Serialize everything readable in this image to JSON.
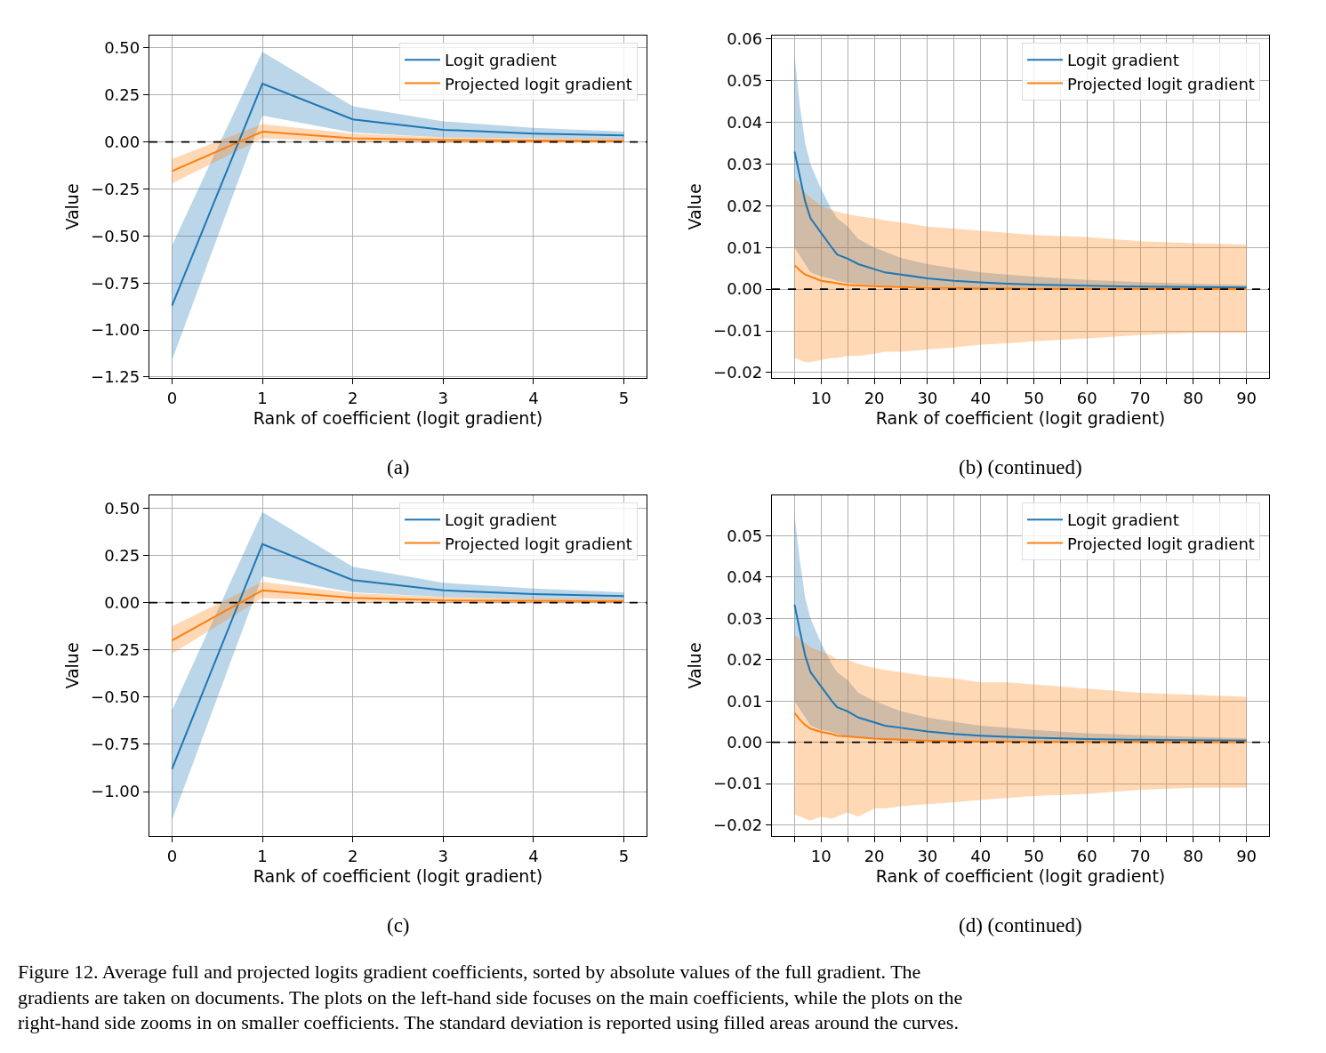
{
  "chart_data": [
    {
      "type": "line",
      "xlabel": "Rank of coefficient (logit gradient)",
      "ylabel": "Value",
      "annotations": [
        "(a)"
      ],
      "x": [
        0,
        1,
        2,
        3,
        4,
        5
      ],
      "series": [
        {
          "name": "Logit gradient",
          "color": "#1f77b4",
          "values": [
            -0.87,
            0.31,
            0.12,
            0.065,
            0.045,
            0.035
          ],
          "lower": [
            -1.16,
            0.14,
            0.05,
            0.025,
            0.02,
            0.015
          ],
          "upper": [
            -0.55,
            0.48,
            0.19,
            0.11,
            0.075,
            0.055
          ]
        },
        {
          "name": "Projected logit gradient",
          "color": "#ff7f0e",
          "values": [
            -0.155,
            0.055,
            0.02,
            0.01,
            0.008,
            0.005
          ],
          "lower": [
            -0.22,
            0.02,
            0.0,
            -0.005,
            -0.005,
            -0.005
          ],
          "upper": [
            -0.09,
            0.095,
            0.045,
            0.025,
            0.02,
            0.018
          ]
        }
      ],
      "xlim": [
        -0.25,
        5.25
      ],
      "ylim": [
        -1.255,
        0.566
      ],
      "xticks": [
        0,
        1,
        2,
        3,
        4,
        5
      ],
      "yticks": [
        {
          "value": -1.25,
          "label": "−1.25"
        },
        {
          "value": -1.0,
          "label": "−1.00"
        },
        {
          "value": -0.75,
          "label": "−0.75"
        },
        {
          "value": -0.5,
          "label": "−0.50"
        },
        {
          "value": -0.25,
          "label": "−0.25"
        },
        {
          "value": 0,
          "label": "0.00"
        },
        {
          "value": 0.25,
          "label": "0.25"
        },
        {
          "value": 0.5,
          "label": "0.50"
        }
      ],
      "ref_lines": [
        {
          "axis": "y",
          "value": 0,
          "color": "#000000",
          "line_style": "dashed"
        }
      ],
      "grid": true,
      "legend": "top right",
      "marker": "none",
      "line_style": "solid"
    },
    {
      "type": "line",
      "xlabel": "Rank of coefficient (logit gradient)",
      "ylabel": "Value",
      "annotations": [
        "(b) (continued)"
      ],
      "x": [
        5,
        6,
        7,
        8,
        10,
        12,
        13,
        15,
        17,
        20,
        22,
        25,
        30,
        35,
        40,
        45,
        50,
        60,
        70,
        80,
        90
      ],
      "series": [
        {
          "name": "Logit gradient",
          "color": "#1f77b4",
          "values": [
            0.033,
            0.027,
            0.021,
            0.017,
            0.0135,
            0.01,
            0.0083,
            0.0073,
            0.006,
            0.0048,
            0.004,
            0.0035,
            0.0026,
            0.002,
            0.0016,
            0.0013,
            0.0011,
            0.0008,
            0.0006,
            0.0005,
            0.0004
          ],
          "lower": [
            0.01,
            0.008,
            0.006,
            0.004,
            0.003,
            0.0025,
            0.002,
            0.0015,
            0.0012,
            0.001,
            0.0009,
            0.0007,
            0.0006,
            0.0005,
            0.0004,
            0.0003,
            0.0003,
            0.0002,
            0.0002,
            0.0001,
            0.0001
          ],
          "upper": [
            0.056,
            0.044,
            0.035,
            0.03,
            0.024,
            0.019,
            0.017,
            0.015,
            0.012,
            0.01,
            0.009,
            0.0075,
            0.006,
            0.005,
            0.004,
            0.0035,
            0.003,
            0.0022,
            0.0017,
            0.0013,
            0.001
          ]
        },
        {
          "name": "Projected logit gradient",
          "color": "#ff7f0e",
          "values": [
            0.0057,
            0.0045,
            0.0035,
            0.003,
            0.002,
            0.0016,
            0.0014,
            0.001,
            0.0009,
            0.0007,
            0.0006,
            0.0005,
            0.0003,
            0.0003,
            0.0002,
            0.0002,
            0.0001,
            0.0001,
            0.0001,
            0,
            0
          ],
          "lower": [
            -0.0165,
            -0.017,
            -0.0175,
            -0.0175,
            -0.017,
            -0.0165,
            -0.0165,
            -0.016,
            -0.016,
            -0.0155,
            -0.015,
            -0.015,
            -0.0145,
            -0.014,
            -0.0133,
            -0.013,
            -0.0125,
            -0.0118,
            -0.011,
            -0.0105,
            -0.0105
          ],
          "upper": [
            0.027,
            0.025,
            0.023,
            0.022,
            0.02,
            0.019,
            0.0185,
            0.018,
            0.0175,
            0.017,
            0.0165,
            0.016,
            0.015,
            0.0145,
            0.014,
            0.0135,
            0.013,
            0.0125,
            0.0115,
            0.011,
            0.0107
          ]
        }
      ],
      "xlim": [
        0.75,
        94.25
      ],
      "ylim": [
        -0.0213,
        0.0608
      ],
      "xticks": [
        {
          "value": 5,
          "label": null
        },
        10,
        {
          "value": 15,
          "label": null
        },
        20,
        {
          "value": 25,
          "label": null
        },
        30,
        {
          "value": 35,
          "label": null
        },
        40,
        {
          "value": 45,
          "label": null
        },
        50,
        {
          "value": 55,
          "label": null
        },
        60,
        {
          "value": 65,
          "label": null
        },
        70,
        {
          "value": 75,
          "label": null
        },
        80,
        {
          "value": 85,
          "label": null
        },
        90
      ],
      "yticks": [
        {
          "value": -0.02,
          "label": "−0.02"
        },
        {
          "value": -0.01,
          "label": "−0.01"
        },
        {
          "value": 0,
          "label": "0.00"
        },
        {
          "value": 0.01,
          "label": "0.01"
        },
        {
          "value": 0.02,
          "label": "0.02"
        },
        {
          "value": 0.03,
          "label": "0.03"
        },
        {
          "value": 0.04,
          "label": "0.04"
        },
        {
          "value": 0.05,
          "label": "0.05"
        },
        {
          "value": 0.06,
          "label": "0.06"
        }
      ],
      "ref_lines": [
        {
          "axis": "y",
          "value": 0,
          "color": "#000000",
          "line_style": "dashed"
        }
      ],
      "grid": true,
      "legend": "top right",
      "marker": "none",
      "line_style": "solid"
    },
    {
      "type": "line",
      "xlabel": "Rank of coefficient (logit gradient)",
      "ylabel": "Value",
      "annotations": [
        "(c)"
      ],
      "x": [
        0,
        1,
        2,
        3,
        4,
        5
      ],
      "series": [
        {
          "name": "Logit gradient",
          "color": "#1f77b4",
          "values": [
            -0.88,
            0.31,
            0.12,
            0.065,
            0.045,
            0.035
          ],
          "lower": [
            -1.15,
            0.14,
            0.055,
            0.03,
            0.02,
            0.015
          ],
          "upper": [
            -0.57,
            0.48,
            0.19,
            0.105,
            0.075,
            0.055
          ]
        },
        {
          "name": "Projected logit gradient",
          "color": "#ff7f0e",
          "values": [
            -0.2,
            0.065,
            0.025,
            0.012,
            0.01,
            0.008
          ],
          "lower": [
            -0.27,
            0.025,
            0.005,
            -0.003,
            -0.004,
            -0.004
          ],
          "upper": [
            -0.125,
            0.11,
            0.05,
            0.03,
            0.022,
            0.02
          ]
        }
      ],
      "xlim": [
        -0.25,
        5.25
      ],
      "ylim": [
        -1.235,
        0.568
      ],
      "xticks": [
        0,
        1,
        2,
        3,
        4,
        5
      ],
      "yticks": [
        {
          "value": -1.0,
          "label": "−1.00"
        },
        {
          "value": -0.75,
          "label": "−0.75"
        },
        {
          "value": -0.5,
          "label": "−0.50"
        },
        {
          "value": -0.25,
          "label": "−0.25"
        },
        {
          "value": 0,
          "label": "0.00"
        },
        {
          "value": 0.25,
          "label": "0.25"
        },
        {
          "value": 0.5,
          "label": "0.50"
        }
      ],
      "ref_lines": [
        {
          "axis": "y",
          "value": 0,
          "color": "#000000",
          "line_style": "dashed"
        }
      ],
      "grid": true,
      "legend": "top right",
      "marker": "none",
      "line_style": "solid"
    },
    {
      "type": "line",
      "xlabel": "Rank of coefficient (logit gradient)",
      "ylabel": "Value",
      "annotations": [
        "(d) (continued)",
        "Figure 12. Average full and projected logits gradient coefficients, sorted by absolute values of the full gradient. The gradients are taken on documents. The plots on the left-hand side focuses on the main coefficients, while the plots on the right-hand side zooms in on smaller coefficients. The standard deviation is reported using filled areas around the curves."
      ],
      "x": [
        5,
        6,
        7,
        8,
        10,
        12,
        13,
        15,
        17,
        20,
        22,
        25,
        30,
        35,
        40,
        45,
        50,
        60,
        70,
        80,
        90
      ],
      "series": [
        {
          "name": "Logit gradient",
          "color": "#1f77b4",
          "values": [
            0.0333,
            0.027,
            0.021,
            0.017,
            0.0135,
            0.01,
            0.0085,
            0.0075,
            0.006,
            0.0048,
            0.004,
            0.0035,
            0.0026,
            0.002,
            0.0016,
            0.0013,
            0.0011,
            0.0008,
            0.0006,
            0.0005,
            0.0004
          ],
          "lower": [
            0.01,
            0.008,
            0.006,
            0.004,
            0.003,
            0.0025,
            0.002,
            0.0015,
            0.0012,
            0.001,
            0.0009,
            0.0007,
            0.0006,
            0.0005,
            0.0004,
            0.0003,
            0.0003,
            0.0002,
            0.0002,
            0.0001,
            0.0001
          ],
          "upper": [
            0.055,
            0.044,
            0.035,
            0.03,
            0.024,
            0.019,
            0.017,
            0.015,
            0.012,
            0.01,
            0.009,
            0.0075,
            0.006,
            0.005,
            0.004,
            0.0035,
            0.003,
            0.0022,
            0.0017,
            0.0013,
            0.001
          ]
        },
        {
          "name": "Projected logit gradient",
          "color": "#ff7f0e",
          "values": [
            0.0071,
            0.0055,
            0.0042,
            0.0033,
            0.0025,
            0.002,
            0.0016,
            0.0014,
            0.0012,
            0.0009,
            0.0008,
            0.0006,
            0.0004,
            0.0003,
            0.0002,
            0.0002,
            0.0001,
            0.0001,
            0.0001,
            0,
            0
          ],
          "lower": [
            -0.0175,
            -0.018,
            -0.0185,
            -0.019,
            -0.018,
            -0.0185,
            -0.018,
            -0.017,
            -0.018,
            -0.016,
            -0.016,
            -0.0155,
            -0.015,
            -0.0145,
            -0.014,
            -0.0135,
            -0.013,
            -0.0125,
            -0.0115,
            -0.011,
            -0.011
          ],
          "upper": [
            0.026,
            0.025,
            0.024,
            0.023,
            0.022,
            0.021,
            0.02,
            0.02,
            0.019,
            0.018,
            0.0175,
            0.017,
            0.016,
            0.0155,
            0.0145,
            0.0145,
            0.014,
            0.013,
            0.012,
            0.0115,
            0.011
          ]
        }
      ],
      "xlim": [
        0.75,
        94.25
      ],
      "ylim": [
        -0.0227,
        0.0598
      ],
      "xticks": [
        {
          "value": 5,
          "label": null
        },
        10,
        {
          "value": 15,
          "label": null
        },
        20,
        {
          "value": 25,
          "label": null
        },
        30,
        {
          "value": 35,
          "label": null
        },
        40,
        {
          "value": 45,
          "label": null
        },
        50,
        {
          "value": 55,
          "label": null
        },
        60,
        {
          "value": 65,
          "label": null
        },
        70,
        {
          "value": 75,
          "label": null
        },
        80,
        {
          "value": 85,
          "label": null
        },
        90
      ],
      "yticks": [
        {
          "value": -0.02,
          "label": "−0.02"
        },
        {
          "value": -0.01,
          "label": "−0.01"
        },
        {
          "value": 0,
          "label": "0.00"
        },
        {
          "value": 0.01,
          "label": "0.01"
        },
        {
          "value": 0.02,
          "label": "0.02"
        },
        {
          "value": 0.03,
          "label": "0.03"
        },
        {
          "value": 0.04,
          "label": "0.04"
        },
        {
          "value": 0.05,
          "label": "0.05"
        }
      ],
      "ref_lines": [
        {
          "axis": "y",
          "value": 0,
          "color": "#000000",
          "line_style": "dashed"
        }
      ],
      "grid": true,
      "legend": "top right",
      "marker": "none",
      "line_style": "solid"
    }
  ]
}
